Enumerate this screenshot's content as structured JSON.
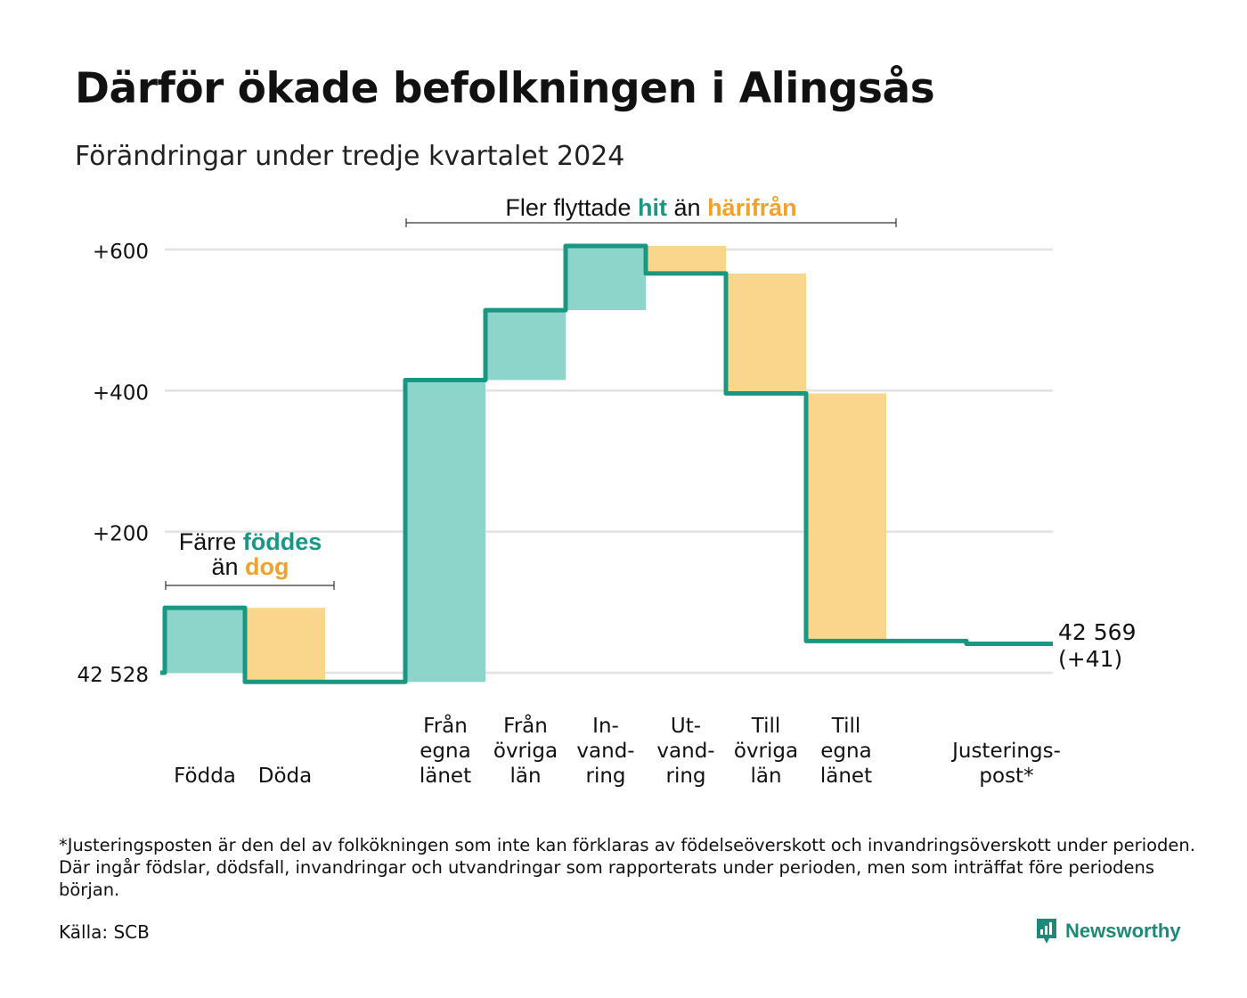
{
  "header": {
    "title": "Därför ökade befolkningen i Alingsås",
    "subtitle": "Förändringar under tredje kvartalet 2024"
  },
  "annotations": {
    "birth_pre": "Färre",
    "birth_key": "föddes",
    "birth_mid": "än",
    "birth_key2": "dog",
    "move_pre": "Fler flyttade",
    "move_key": "hit",
    "move_mid": "än",
    "move_key2": "härifrån"
  },
  "chart_data": {
    "type": "waterfall",
    "start_value": 42528,
    "start_label": "42 528",
    "end_label_value": "42 569",
    "end_label_change": "(+41)",
    "y_ticks": [
      {
        "value": 0,
        "label": "42 528"
      },
      {
        "value": 200,
        "label": "+200"
      },
      {
        "value": 400,
        "label": "+400"
      },
      {
        "value": 600,
        "label": "+600"
      }
    ],
    "ylim": [
      -20,
      620
    ],
    "grid": true,
    "categories": [
      {
        "lines": [
          "Födda"
        ],
        "change": 92,
        "kind": "increase",
        "cumulative": 92
      },
      {
        "lines": [
          "Döda"
        ],
        "change": -105,
        "kind": "decrease",
        "cumulative": -13
      },
      {
        "lines": [
          ""
        ],
        "change": 0,
        "kind": "gap",
        "cumulative": -13
      },
      {
        "lines": [
          "Från",
          "egna",
          "länet"
        ],
        "change": 428,
        "kind": "increase",
        "cumulative": 415
      },
      {
        "lines": [
          "Från",
          "övriga",
          "län"
        ],
        "change": 99,
        "kind": "increase",
        "cumulative": 514
      },
      {
        "lines": [
          "In-",
          "vand-",
          "ring"
        ],
        "change": 91,
        "kind": "increase",
        "cumulative": 605
      },
      {
        "lines": [
          "Ut-",
          "vand-",
          "ring"
        ],
        "change": -39,
        "kind": "decrease",
        "cumulative": 566
      },
      {
        "lines": [
          "Till",
          "övriga",
          "län"
        ],
        "change": -170,
        "kind": "decrease",
        "cumulative": 396
      },
      {
        "lines": [
          "Till",
          "egna",
          "länet"
        ],
        "change": -351,
        "kind": "decrease",
        "cumulative": 45
      },
      {
        "lines": [
          ""
        ],
        "change": 0,
        "kind": "gap",
        "cumulative": 45
      },
      {
        "lines": [
          "Justerings-",
          "post*"
        ],
        "change": -4,
        "kind": "adjustment",
        "cumulative": 41
      }
    ],
    "colors": {
      "increase": "#8dd5cb",
      "decrease": "#fad68c",
      "line": "#1a9783",
      "grid": "#e2e2e2"
    }
  },
  "footer": {
    "footnote": "*Justeringsposten är den del av folkökningen som inte kan förklaras av födelseöverskott och invandringsöverskott under perioden. Där ingår födslar, dödsfall, invandringar och utvandringar som rapporterats under perioden, men som inträffat före periodens början.",
    "source": "Källa: SCB",
    "brand": "Newsworthy"
  }
}
